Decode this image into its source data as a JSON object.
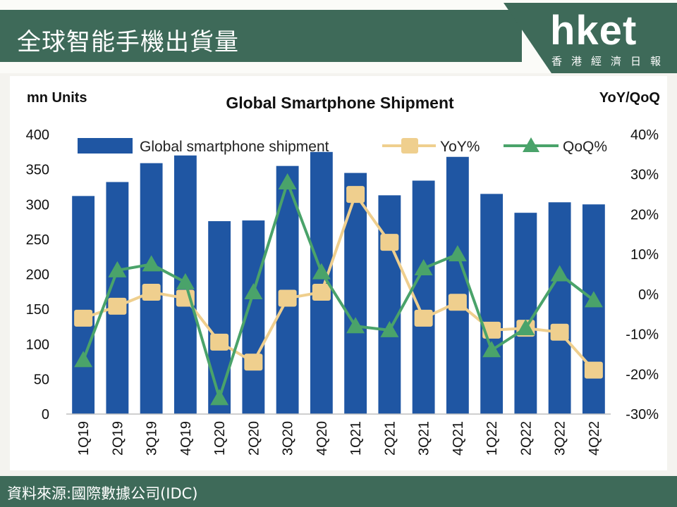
{
  "header": {
    "title": "全球智能手機出貨量",
    "logo_text": "hket",
    "logo_subtitle": "香港經濟日報"
  },
  "footer": {
    "source": "資料來源:國際數據公司(IDC)"
  },
  "colors": {
    "band": "#3e6a59",
    "bar": "#1f56a3",
    "yoy": "#efcf8e",
    "qoq": "#4aa36a"
  },
  "chart_data": {
    "type": "bar",
    "title": "Global Smartphone Shipment",
    "ylabel_left": "mn Units",
    "ylabel_right": "YoY/QoQ",
    "ylim_left": [
      0,
      400
    ],
    "ylim_right": [
      -30,
      40
    ],
    "yticks_left": [
      "0",
      "50",
      "100",
      "150",
      "200",
      "250",
      "300",
      "350",
      "400"
    ],
    "yticks_right": [
      "-30%",
      "-20%",
      "-10%",
      "0%",
      "10%",
      "20%",
      "30%",
      "40%"
    ],
    "legend_position": "top",
    "grid": false,
    "categories": [
      "1Q19",
      "2Q19",
      "3Q19",
      "4Q19",
      "1Q20",
      "2Q20",
      "3Q20",
      "4Q20",
      "1Q21",
      "2Q21",
      "3Q21",
      "4Q21",
      "1Q22",
      "2Q22",
      "3Q22",
      "4Q22"
    ],
    "series": [
      {
        "name": "Global smartphone shipment",
        "type": "bar",
        "axis": "left",
        "values": [
          312,
          332,
          359,
          370,
          276,
          277,
          355,
          375,
          345,
          313,
          334,
          368,
          315,
          288,
          303,
          300
        ]
      },
      {
        "name": "YoY%",
        "type": "line",
        "axis": "right",
        "values": [
          -6.0,
          -3.0,
          0.5,
          -1.0,
          -12.0,
          -17.0,
          -1.0,
          0.5,
          25.0,
          13.0,
          -6.0,
          -2.0,
          -9.0,
          -8.5,
          -9.5,
          -19.0
        ]
      },
      {
        "name": "QoQ%",
        "type": "line",
        "axis": "right",
        "values": [
          -16.5,
          6.0,
          7.5,
          3.0,
          -26.0,
          0.5,
          28.0,
          5.5,
          -8.0,
          -9.0,
          6.5,
          10.0,
          -14.0,
          -8.5,
          5.0,
          -1.5
        ]
      }
    ]
  }
}
